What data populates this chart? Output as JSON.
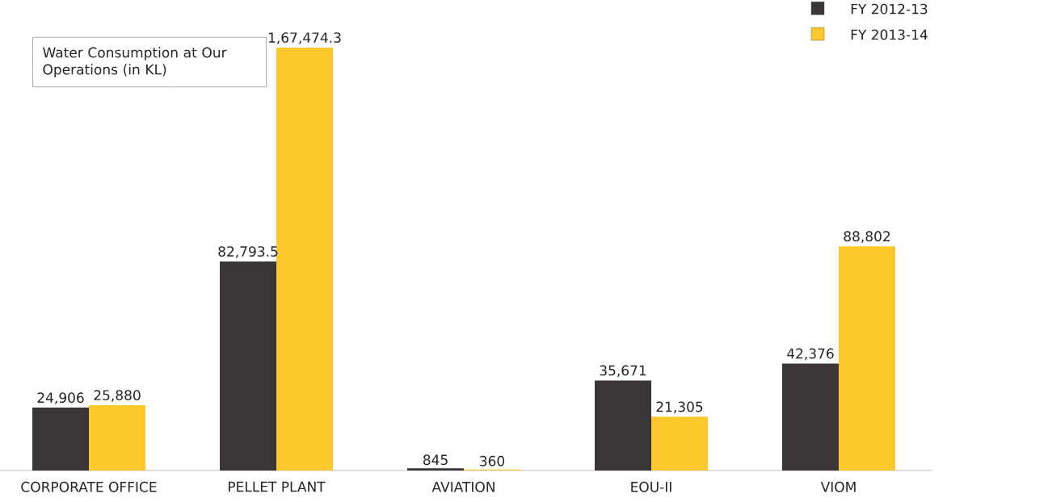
{
  "chart_data": {
    "type": "bar",
    "title": "Water Consumption at Our Operations (in KL)",
    "legend": "top right",
    "categories": [
      "CORPORATE OFFICE",
      "PELLET PLANT",
      "AVIATION",
      "EOU-II",
      "VIOM"
    ],
    "series": [
      {
        "name": "FY 2012-13",
        "color": "#3a3536",
        "values": [
          24906,
          82793.5,
          845,
          35671,
          42376
        ],
        "value_labels": [
          "24,906",
          "82,793.5",
          "845",
          "35,671",
          "42,376"
        ]
      },
      {
        "name": "FY 2013-14",
        "color": "#fdc82b",
        "values": [
          25880,
          167474.3,
          360,
          21305,
          88802
        ],
        "value_labels": [
          "25,880",
          "1,67,474.3",
          "360",
          "21,305",
          "88,802"
        ]
      }
    ]
  }
}
